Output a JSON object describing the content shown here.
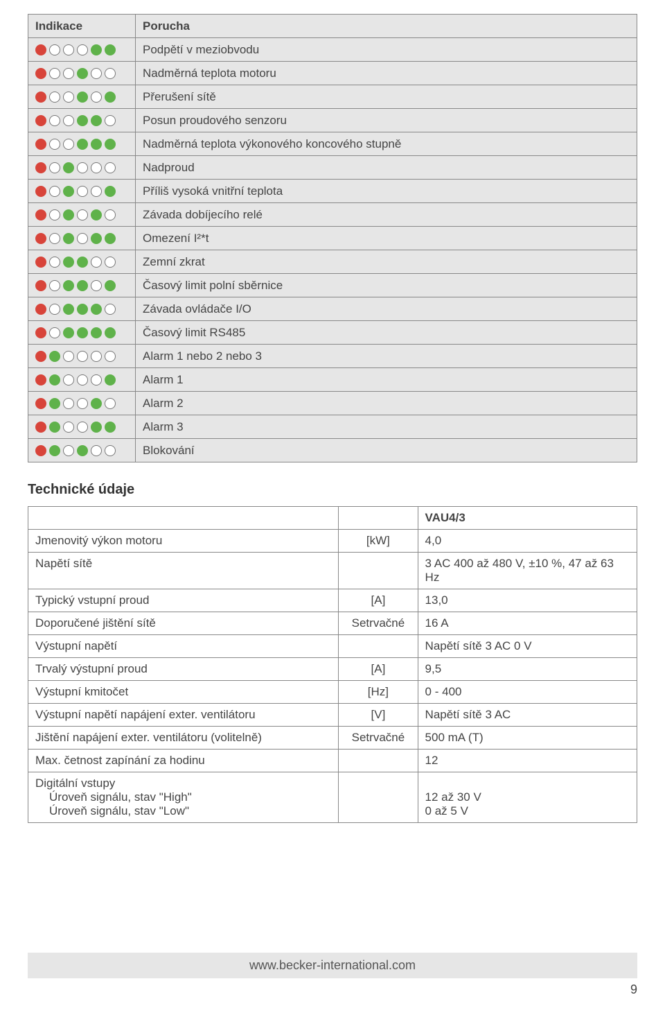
{
  "colors": {
    "red": "#d8443a",
    "green": "#5fb24a",
    "off_border": "#777777",
    "off_fill": "#ffffff",
    "gray_bg": "#e6e6e6"
  },
  "indikace": {
    "header": {
      "col1": "Indikace",
      "col2": "Porucha"
    },
    "rows": [
      {
        "leds": [
          "R",
          "O",
          "O",
          "O",
          "G",
          "G"
        ],
        "text": "Podpětí v meziobvodu"
      },
      {
        "leds": [
          "R",
          "O",
          "O",
          "G",
          "O",
          "O"
        ],
        "text": "Nadměrná teplota motoru"
      },
      {
        "leds": [
          "R",
          "O",
          "O",
          "G",
          "O",
          "G"
        ],
        "text": "Přerušení sítě"
      },
      {
        "leds": [
          "R",
          "O",
          "O",
          "G",
          "G",
          "O"
        ],
        "text": "Posun proudového senzoru"
      },
      {
        "leds": [
          "R",
          "O",
          "O",
          "G",
          "G",
          "G"
        ],
        "text": "Nadměrná teplota výkonového koncového stupně"
      },
      {
        "leds": [
          "R",
          "O",
          "G",
          "O",
          "O",
          "O"
        ],
        "text": "Nadproud"
      },
      {
        "leds": [
          "R",
          "O",
          "G",
          "O",
          "O",
          "G"
        ],
        "text": "Příliš vysoká vnitřní teplota"
      },
      {
        "leds": [
          "R",
          "O",
          "G",
          "O",
          "G",
          "O"
        ],
        "text": "Závada dobíjecího relé"
      },
      {
        "leds": [
          "R",
          "O",
          "G",
          "O",
          "G",
          "G"
        ],
        "text": "Omezení I²*t"
      },
      {
        "leds": [
          "R",
          "O",
          "G",
          "G",
          "O",
          "O"
        ],
        "text": "Zemní zkrat"
      },
      {
        "leds": [
          "R",
          "O",
          "G",
          "G",
          "O",
          "G"
        ],
        "text": "Časový limit polní sběrnice"
      },
      {
        "leds": [
          "R",
          "O",
          "G",
          "G",
          "G",
          "O"
        ],
        "text": "Závada ovládače I/O"
      },
      {
        "leds": [
          "R",
          "O",
          "G",
          "G",
          "G",
          "G"
        ],
        "text": "Časový limit RS485"
      },
      {
        "leds": [
          "R",
          "G",
          "O",
          "O",
          "O",
          "O"
        ],
        "text": "Alarm 1 nebo 2 nebo 3"
      },
      {
        "leds": [
          "R",
          "G",
          "O",
          "O",
          "O",
          "G"
        ],
        "text": "Alarm 1"
      },
      {
        "leds": [
          "R",
          "G",
          "O",
          "O",
          "G",
          "O"
        ],
        "text": "Alarm 2"
      },
      {
        "leds": [
          "R",
          "G",
          "O",
          "O",
          "G",
          "G"
        ],
        "text": "Alarm 3"
      },
      {
        "leds": [
          "R",
          "G",
          "O",
          "G",
          "O",
          "O"
        ],
        "text": "Blokování"
      }
    ]
  },
  "tech": {
    "heading": "Technické údaje",
    "model_header": "VAU4/3",
    "rows": [
      {
        "label": "Jmenovitý výkon motoru",
        "unit": "[kW]",
        "value": "4,0"
      },
      {
        "label": "Napětí sítě",
        "unit": "",
        "value": "3 AC 400 až 480 V, ±10 %, 47 až 63 Hz"
      },
      {
        "label": "Typický vstupní proud",
        "unit": "[A]",
        "value": "13,0"
      },
      {
        "label": "Doporučené jištění sítě",
        "unit": "Setrvačné",
        "value": "16 A"
      },
      {
        "label": "Výstupní napětí",
        "unit": "",
        "value": "Napětí sítě 3 AC 0 V"
      },
      {
        "label": "Trvalý výstupní proud",
        "unit": "[A]",
        "value": "9,5"
      },
      {
        "label": "Výstupní kmitočet",
        "unit": "[Hz]",
        "value": "0 - 400"
      },
      {
        "label": "Výstupní napětí napájení exter. ventilátoru",
        "unit": "[V]",
        "value": "Napětí sítě 3 AC"
      },
      {
        "label": "Jištění napájení exter. ventilátoru (volitelně)",
        "unit": "Setrvačné",
        "value": "500 mA (T)"
      },
      {
        "label": "Max. četnost zapínání za hodinu",
        "unit": "",
        "value": "12"
      }
    ],
    "digital_in": {
      "label": "Digitální vstupy",
      "high_label": "Úroveň signálu, stav \"High\"",
      "low_label": "Úroveň signálu, stav \"Low\"",
      "high_value": "12 až 30 V",
      "low_value": "0 až 5 V"
    }
  },
  "footer": {
    "url": "www.becker-international.com",
    "page_number": "9"
  }
}
